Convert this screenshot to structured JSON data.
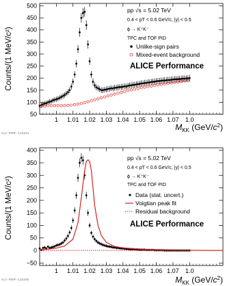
{
  "chart_data": [
    {
      "type": "scatter",
      "x_label": "M_KK (GeV/c²)",
      "y_label": "Counts/(1 MeV/c²)",
      "xlim": [
        0.99,
        1.1
      ],
      "ylim": [
        50,
        510
      ],
      "x_ticks": [
        "1",
        "1.01",
        "1.02",
        "1.03",
        "1.04",
        "1.05",
        "1.06",
        "1.07",
        "1.0"
      ],
      "y_ticks": [
        "50",
        "100",
        "150",
        "200",
        "250",
        "300",
        "350",
        "400",
        "450",
        "500"
      ],
      "legend": {
        "system": "pp √s = 5.02 TeV",
        "kin": "0.4 < pT < 0.6 GeV/c, |y| < 0.5",
        "decay": "ϕ → K⁺K⁻",
        "pid": "TPC and TOF PID",
        "entries": [
          "Unlike-sign pairs",
          "Mixed-event background"
        ]
      },
      "performance_label": "ALICE Performance",
      "stamp": "ALI-PERF-115261",
      "series": [
        {
          "name": "Unlike-sign pairs",
          "color": "#000000",
          "marker": "filled-circle",
          "x": [
            0.989,
            0.99,
            0.991,
            0.992,
            0.993,
            0.994,
            0.995,
            0.996,
            0.997,
            0.998,
            0.999,
            1.0,
            1.001,
            1.002,
            1.003,
            1.004,
            1.005,
            1.006,
            1.007,
            1.008,
            1.009,
            1.01,
            1.011,
            1.012,
            1.013,
            1.014,
            1.015,
            1.016,
            1.017,
            1.018,
            1.019,
            1.02,
            1.021,
            1.022,
            1.023,
            1.024,
            1.025,
            1.026,
            1.027,
            1.028,
            1.029,
            1.03,
            1.031,
            1.032,
            1.033,
            1.034,
            1.035,
            1.036,
            1.037,
            1.038,
            1.039,
            1.04,
            1.041,
            1.042,
            1.043,
            1.044,
            1.045,
            1.046,
            1.047,
            1.048,
            1.049,
            1.05,
            1.051,
            1.052,
            1.053,
            1.054,
            1.055,
            1.056,
            1.057,
            1.058,
            1.059,
            1.06,
            1.061,
            1.062,
            1.063,
            1.064,
            1.065,
            1.066,
            1.067,
            1.068,
            1.069,
            1.07,
            1.071,
            1.072,
            1.073,
            1.074,
            1.075,
            1.076,
            1.077,
            1.078,
            1.079,
            1.08
          ],
          "y": [
            80,
            85,
            88,
            92,
            95,
            96,
            100,
            102,
            104,
            108,
            110,
            112,
            115,
            118,
            122,
            126,
            130,
            136,
            142,
            150,
            165,
            185,
            215,
            260,
            320,
            390,
            450,
            470,
            475,
            420,
            340,
            270,
            215,
            185,
            170,
            162,
            158,
            154,
            150,
            150,
            152,
            153,
            155,
            156,
            158,
            157,
            160,
            160,
            162,
            163,
            163,
            164,
            166,
            165,
            168,
            170,
            170,
            172,
            172,
            174,
            175,
            176,
            178,
            178,
            180,
            180,
            182,
            182,
            184,
            185,
            185,
            187,
            188,
            188,
            189,
            190,
            190,
            191,
            192,
            192,
            193,
            194,
            195,
            195,
            196,
            196,
            197,
            198,
            198,
            199,
            199,
            200
          ]
        },
        {
          "name": "Mixed-event background",
          "color": "#e8302e",
          "marker": "open-circle",
          "x": [
            0.989,
            0.991,
            0.993,
            0.995,
            0.997,
            0.999,
            1.001,
            1.003,
            1.005,
            1.007,
            1.009,
            1.011,
            1.013,
            1.015,
            1.017,
            1.019,
            1.021,
            1.023,
            1.025,
            1.027,
            1.029,
            1.031,
            1.033,
            1.035,
            1.037,
            1.039,
            1.041,
            1.043,
            1.045,
            1.047,
            1.049,
            1.051,
            1.053,
            1.055,
            1.057,
            1.059,
            1.061,
            1.063,
            1.065,
            1.067,
            1.069,
            1.071,
            1.073,
            1.075,
            1.077,
            1.079
          ],
          "y": [
            80,
            82,
            84,
            86,
            86,
            86,
            86,
            86,
            86,
            87,
            88,
            90,
            92,
            95,
            98,
            102,
            106,
            110,
            114,
            118,
            122,
            126,
            130,
            134,
            138,
            141,
            144,
            148,
            151,
            154,
            157,
            160,
            162,
            165,
            167,
            170,
            172,
            174,
            176,
            178,
            180,
            182,
            184,
            186,
            188,
            190
          ]
        }
      ]
    },
    {
      "type": "scatter",
      "x_label": "M_KK (GeV/c²)",
      "y_label": "Counts/(1 MeV/c²)",
      "xlim": [
        0.99,
        1.1
      ],
      "ylim": [
        -60,
        410
      ],
      "x_ticks": [
        "1",
        "1.01",
        "1.02",
        "1.03",
        "1.04",
        "1.05",
        "1.06",
        "1.07",
        "1.0"
      ],
      "y_ticks": [
        "−50",
        "0",
        "50",
        "100",
        "150",
        "200",
        "250",
        "300",
        "350",
        "400"
      ],
      "legend": {
        "system": "pp √s = 5.02 TeV",
        "kin": "0.4 < pT < 0.6 GeV/c, |y| < 0.5",
        "decay": "ϕ → K⁺K⁻",
        "pid": "TPC and TOF PID",
        "entries": [
          "Data (stat. uncert.)",
          "Voigtian peak fit",
          "Residual background"
        ]
      },
      "performance_label": "ALICE Performance",
      "stamp": "ALI-PERF-115265",
      "series": [
        {
          "name": "Data (stat. uncert.)",
          "color": "#000000",
          "marker": "filled-circle",
          "x": [
            0.989,
            0.99,
            0.991,
            0.992,
            0.993,
            0.994,
            0.995,
            0.996,
            0.997,
            0.998,
            0.999,
            1.0,
            1.001,
            1.002,
            1.003,
            1.004,
            1.005,
            1.006,
            1.007,
            1.008,
            1.009,
            1.01,
            1.011,
            1.012,
            1.013,
            1.014,
            1.015,
            1.016,
            1.017,
            1.018,
            1.019,
            1.02,
            1.021,
            1.022,
            1.023,
            1.024,
            1.025,
            1.026,
            1.027,
            1.028,
            1.029,
            1.03,
            1.031,
            1.032,
            1.033,
            1.034,
            1.035,
            1.036,
            1.037,
            1.038,
            1.039,
            1.04,
            1.041,
            1.042,
            1.043,
            1.044,
            1.045,
            1.046,
            1.047,
            1.048,
            1.049,
            1.05,
            1.051,
            1.052,
            1.053,
            1.054,
            1.055,
            1.056,
            1.057,
            1.058,
            1.059,
            1.06,
            1.061,
            1.062,
            1.063,
            1.064,
            1.065,
            1.066,
            1.067,
            1.068,
            1.069,
            1.07,
            1.071,
            1.072,
            1.073,
            1.074,
            1.075,
            1.076,
            1.077,
            1.078,
            1.079,
            1.08
          ],
          "y": [
            5,
            8,
            2,
            10,
            12,
            8,
            15,
            10,
            12,
            14,
            16,
            20,
            22,
            24,
            28,
            32,
            40,
            48,
            58,
            72,
            90,
            120,
            160,
            220,
            290,
            350,
            370,
            360,
            300,
            220,
            150,
            100,
            70,
            55,
            45,
            38,
            32,
            28,
            25,
            22,
            20,
            18,
            16,
            15,
            14,
            12,
            12,
            10,
            10,
            9,
            8,
            8,
            7,
            6,
            6,
            5,
            5,
            5,
            4,
            4,
            4,
            3,
            3,
            3,
            3,
            2,
            2,
            2,
            2,
            2,
            1,
            1,
            1,
            1,
            1,
            1,
            0,
            0,
            0,
            0,
            0,
            0,
            0,
            0,
            0,
            0,
            0,
            0,
            0,
            0,
            0,
            0
          ]
        },
        {
          "name": "Voigtian peak fit",
          "color": "#d42020",
          "style": "solid",
          "x": [
            0.99,
            0.995,
            1.0,
            1.005,
            1.01,
            1.013,
            1.015,
            1.017,
            1.018,
            1.019,
            1.02,
            1.021,
            1.022,
            1.023,
            1.025,
            1.027,
            1.03,
            1.035,
            1.04,
            1.05,
            1.06,
            1.07,
            1.08,
            1.09,
            1.1
          ],
          "y": [
            3,
            5,
            9,
            18,
            45,
            110,
            210,
            320,
            355,
            362,
            355,
            320,
            250,
            180,
            100,
            60,
            32,
            16,
            10,
            5,
            3,
            2,
            1,
            0,
            0
          ]
        },
        {
          "name": "Residual background",
          "color": "#d42020",
          "style": "dotted",
          "x": [
            0.99,
            1.1
          ],
          "y": [
            0,
            0
          ]
        }
      ]
    }
  ]
}
